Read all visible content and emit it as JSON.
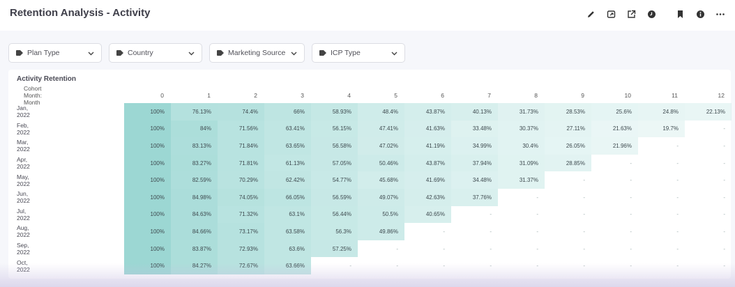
{
  "header": {
    "title": "Retention Analysis - Activity",
    "actions": [
      "pencil-icon",
      "share-window-icon",
      "external-link-icon",
      "clock-icon",
      "bookmark-icon",
      "info-icon",
      "more-icon"
    ]
  },
  "filters": [
    {
      "label": "Plan Type"
    },
    {
      "label": "Country"
    },
    {
      "label": "Marketing Source"
    },
    {
      "label": "ICP Type"
    }
  ],
  "table": {
    "title": "Activity Retention",
    "cohort_header": "Cohort Month: Month",
    "columns": [
      "0",
      "1",
      "2",
      "3",
      "4",
      "5",
      "6",
      "7",
      "8",
      "9",
      "10",
      "11",
      "12"
    ],
    "rows": [
      {
        "label": "Jan, 2022",
        "values": [
          "100%",
          "76.13%",
          "74.4%",
          "66%",
          "58.93%",
          "48.4%",
          "43.87%",
          "40.13%",
          "31.73%",
          "28.53%",
          "25.6%",
          "24.8%",
          "22.13%"
        ]
      },
      {
        "label": "Feb, 2022",
        "values": [
          "100%",
          "84%",
          "71.56%",
          "63.41%",
          "56.15%",
          "47.41%",
          "41.63%",
          "33.48%",
          "30.37%",
          "27.11%",
          "21.63%",
          "19.7%",
          "-"
        ]
      },
      {
        "label": "Mar, 2022",
        "values": [
          "100%",
          "83.13%",
          "71.84%",
          "63.65%",
          "56.58%",
          "47.02%",
          "41.19%",
          "34.99%",
          "30.4%",
          "26.05%",
          "21.96%",
          "-",
          "-"
        ]
      },
      {
        "label": "Apr, 2022",
        "values": [
          "100%",
          "83.27%",
          "71.81%",
          "61.13%",
          "57.05%",
          "50.46%",
          "43.87%",
          "37.94%",
          "31.09%",
          "28.85%",
          "-",
          "-",
          "-"
        ]
      },
      {
        "label": "May, 2022",
        "values": [
          "100%",
          "82.59%",
          "70.29%",
          "62.42%",
          "54.77%",
          "45.68%",
          "41.69%",
          "34.48%",
          "31.37%",
          "-",
          "-",
          "-",
          "-"
        ]
      },
      {
        "label": "Jun, 2022",
        "values": [
          "100%",
          "84.98%",
          "74.05%",
          "66.05%",
          "56.59%",
          "49.07%",
          "42.63%",
          "37.76%",
          "-",
          "-",
          "-",
          "-",
          "-"
        ]
      },
      {
        "label": "Jul, 2022",
        "values": [
          "100%",
          "84.63%",
          "71.32%",
          "63.1%",
          "56.44%",
          "50.5%",
          "40.65%",
          "-",
          "-",
          "-",
          "-",
          "-",
          "-"
        ]
      },
      {
        "label": "Aug, 2022",
        "values": [
          "100%",
          "84.66%",
          "73.17%",
          "63.58%",
          "56.3%",
          "49.86%",
          "-",
          "-",
          "-",
          "-",
          "-",
          "-",
          "-"
        ]
      },
      {
        "label": "Sep, 2022",
        "values": [
          "100%",
          "83.87%",
          "72.93%",
          "63.6%",
          "57.25%",
          "-",
          "-",
          "-",
          "-",
          "-",
          "-",
          "-",
          "-"
        ]
      },
      {
        "label": "Oct, 2022",
        "values": [
          "100%",
          "84.27%",
          "72.67%",
          "63.66%",
          "-",
          "-",
          "-",
          "-",
          "-",
          "-",
          "-",
          "-",
          "-"
        ]
      }
    ],
    "heat_color": "#5fbfb8"
  }
}
